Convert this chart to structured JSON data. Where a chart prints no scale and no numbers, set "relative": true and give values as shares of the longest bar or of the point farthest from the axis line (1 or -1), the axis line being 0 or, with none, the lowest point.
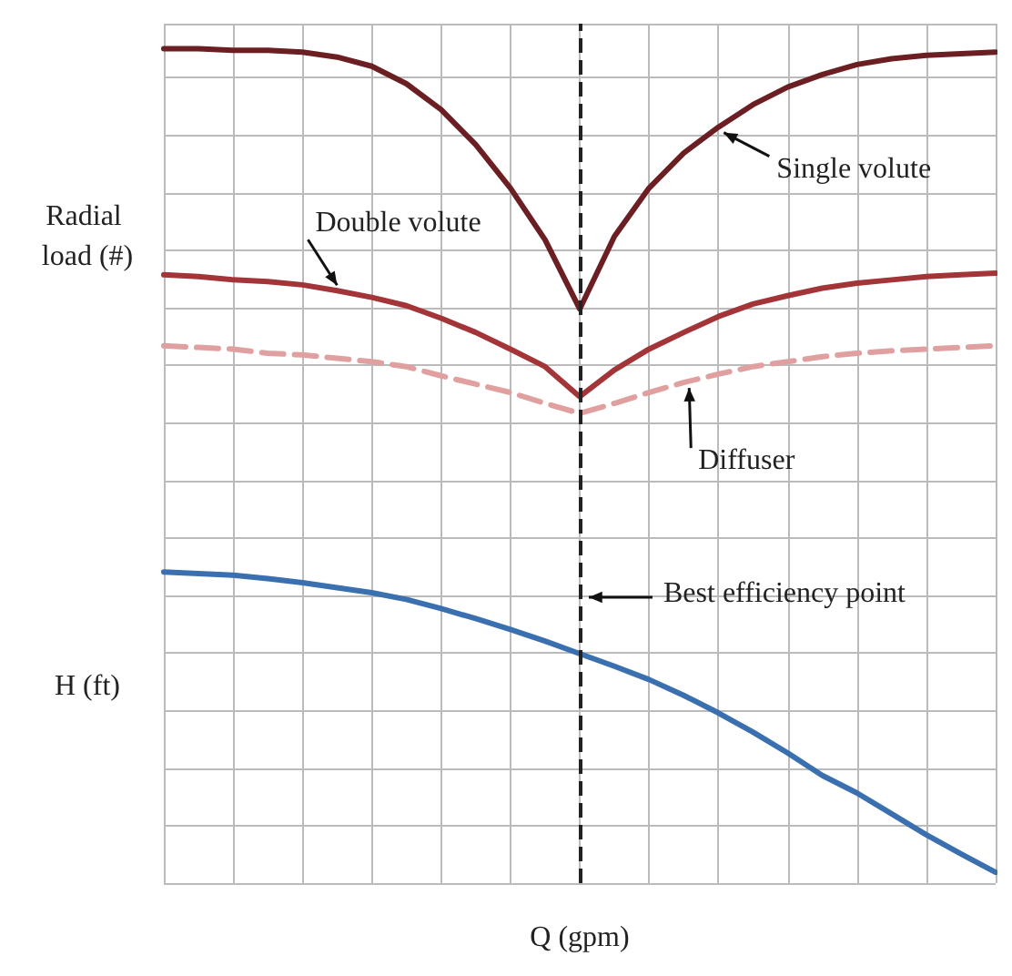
{
  "chart_data": {
    "type": "line",
    "relative": true,
    "xlabel": "Q (gpm)",
    "ylabel": "Radial load (#)",
    "annotations": [
      "H (ft)",
      "Best efficiency point"
    ],
    "legend": false,
    "grid": true,
    "marker": "none",
    "categories": [
      null,
      null,
      null,
      null,
      null,
      null,
      null,
      null,
      null,
      null,
      null,
      null,
      null,
      null,
      null,
      null,
      null,
      null,
      null,
      null,
      null,
      null,
      null,
      null,
      null
    ],
    "series": [
      {
        "name": "Single volute",
        "color": "#6b1f22",
        "line_style": "solid",
        "values": [
          1,
          1,
          0.998,
          0.998,
          0.996,
          0.99,
          0.979,
          0.958,
          0.927,
          0.885,
          0.833,
          0.771,
          0.688,
          0.775,
          0.833,
          0.875,
          0.906,
          0.933,
          0.954,
          0.969,
          0.981,
          0.988,
          0.992,
          0.994,
          0.996
        ]
      },
      {
        "name": "Double volute",
        "color": "#a33438",
        "line_style": "solid",
        "values": [
          0.729,
          0.727,
          0.723,
          0.721,
          0.717,
          0.71,
          0.702,
          0.692,
          0.677,
          0.66,
          0.64,
          0.619,
          0.583,
          0.615,
          0.64,
          0.66,
          0.679,
          0.694,
          0.704,
          0.713,
          0.719,
          0.723,
          0.727,
          0.729,
          0.731
        ]
      },
      {
        "name": "Diffuser",
        "color": "#e0a0a0",
        "line_style": "dashed",
        "values": [
          0.644,
          0.642,
          0.64,
          0.635,
          0.633,
          0.629,
          0.625,
          0.619,
          0.608,
          0.598,
          0.588,
          0.575,
          0.563,
          0.575,
          0.588,
          0.6,
          0.61,
          0.619,
          0.625,
          0.631,
          0.635,
          0.638,
          0.64,
          0.642,
          0.644
        ]
      },
      {
        "color": "#3a6fb0",
        "line_style": "solid",
        "values": [
          0.373,
          0.371,
          0.369,
          0.365,
          0.36,
          0.354,
          0.348,
          0.34,
          0.329,
          0.317,
          0.304,
          0.29,
          0.275,
          0.26,
          0.244,
          0.225,
          0.204,
          0.181,
          0.156,
          0.129,
          0.108,
          0.083,
          0.058,
          0.035,
          0.013
        ]
      }
    ]
  }
}
